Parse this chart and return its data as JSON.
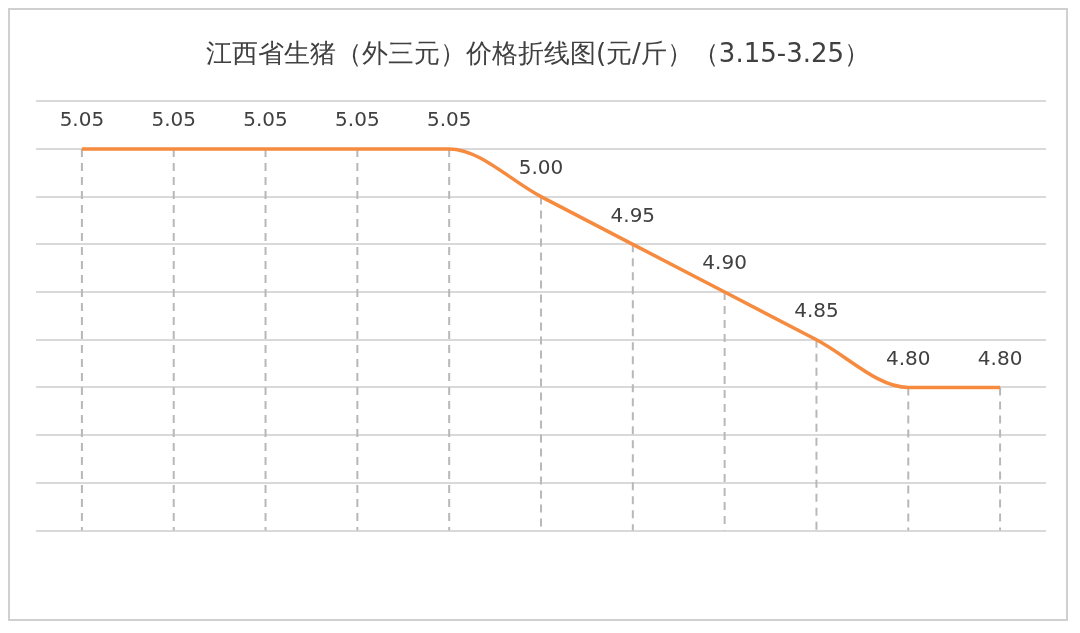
{
  "chart_data": {
    "type": "line",
    "title": "江西省生猪（外三元）价格折线图(元/斤）（3.15-3.25）",
    "categories": [
      null,
      null,
      null,
      null,
      null,
      null,
      null,
      null,
      null,
      null,
      null
    ],
    "series": [
      {
        "color": "#f68a3e",
        "values": [
          5.05,
          5.05,
          5.05,
          5.05,
          5.05,
          5.0,
          4.95,
          4.9,
          4.85,
          4.8,
          4.8
        ],
        "value_labels": [
          "5.05",
          "5.05",
          "5.05",
          "5.05",
          "5.05",
          "5.00",
          "4.95",
          "4.90",
          "4.85",
          "4.80",
          "4.80"
        ]
      }
    ],
    "ylim": [
      4.65,
      5.1
    ],
    "yticks": [
      {
        "value": 4.65,
        "label": null
      },
      {
        "value": 4.7,
        "label": null
      },
      {
        "value": 4.75,
        "label": null
      },
      {
        "value": 4.8,
        "label": null
      },
      {
        "value": 4.85,
        "label": null
      },
      {
        "value": 4.9,
        "label": null
      },
      {
        "value": 4.95,
        "label": null
      },
      {
        "value": 5.0,
        "label": null
      },
      {
        "value": 5.05,
        "label": null
      },
      {
        "value": 5.1,
        "label": null
      }
    ],
    "grid": true,
    "marker": "none",
    "line_style": "solid",
    "legend": false
  }
}
